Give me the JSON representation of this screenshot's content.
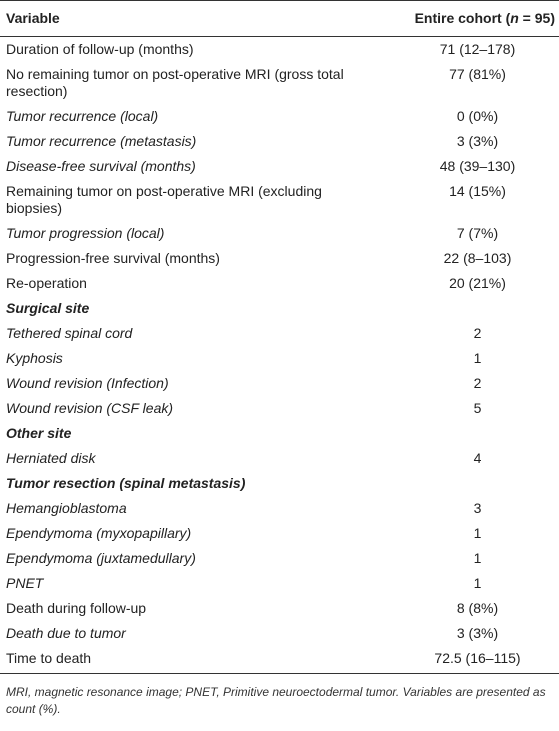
{
  "table": {
    "header": [
      "Variable",
      [
        "Entire cohort (",
        "n",
        " = 95)"
      ]
    ],
    "rows": [
      [
        "Duration of follow-up (months)",
        "71 (12–178)"
      ],
      [
        "No remaining tumor on post-operative MRI (gross total resection)",
        "77 (81%)"
      ],
      [
        "Tumor recurrence (local)",
        "0 (0%)"
      ],
      [
        "Tumor recurrence (metastasis)",
        "3 (3%)"
      ],
      [
        "Disease-free survival (months)",
        "48 (39–130)"
      ],
      [
        "Remaining tumor on post-operative MRI (excluding biopsies)",
        "14 (15%)"
      ],
      [
        "Tumor progression (local)",
        "7 (7%)"
      ],
      [
        "Progression-free survival (months)",
        "22 (8–103)"
      ],
      [
        "Re-operation",
        "20 (21%)"
      ],
      [
        "Surgical site"
      ],
      [
        "Tethered spinal cord",
        "2"
      ],
      [
        "Kyphosis",
        "1"
      ],
      [
        "Wound revision (Infection)",
        "2"
      ],
      [
        "Wound revision (CSF leak)",
        "5"
      ],
      [
        "Other site"
      ],
      [
        "Herniated disk",
        "4"
      ],
      [
        "Tumor resection (spinal metastasis)"
      ],
      [
        "Hemangioblastoma",
        "3"
      ],
      [
        "Ependymoma (myxopapillary)",
        "1"
      ],
      [
        "Ependymoma (juxtamedullary)",
        "1"
      ],
      [
        "PNET",
        "1"
      ],
      [
        "Death during follow-up",
        "8 (8%)"
      ],
      [
        "Death due to tumor",
        "3 (3%)"
      ],
      [
        "Time to death",
        "72.5 (16–115)"
      ]
    ]
  },
  "footnote": "MRI, magnetic resonance image; PNET, Primitive neuroectodermal tumor. Variables are presented as count (%)."
}
